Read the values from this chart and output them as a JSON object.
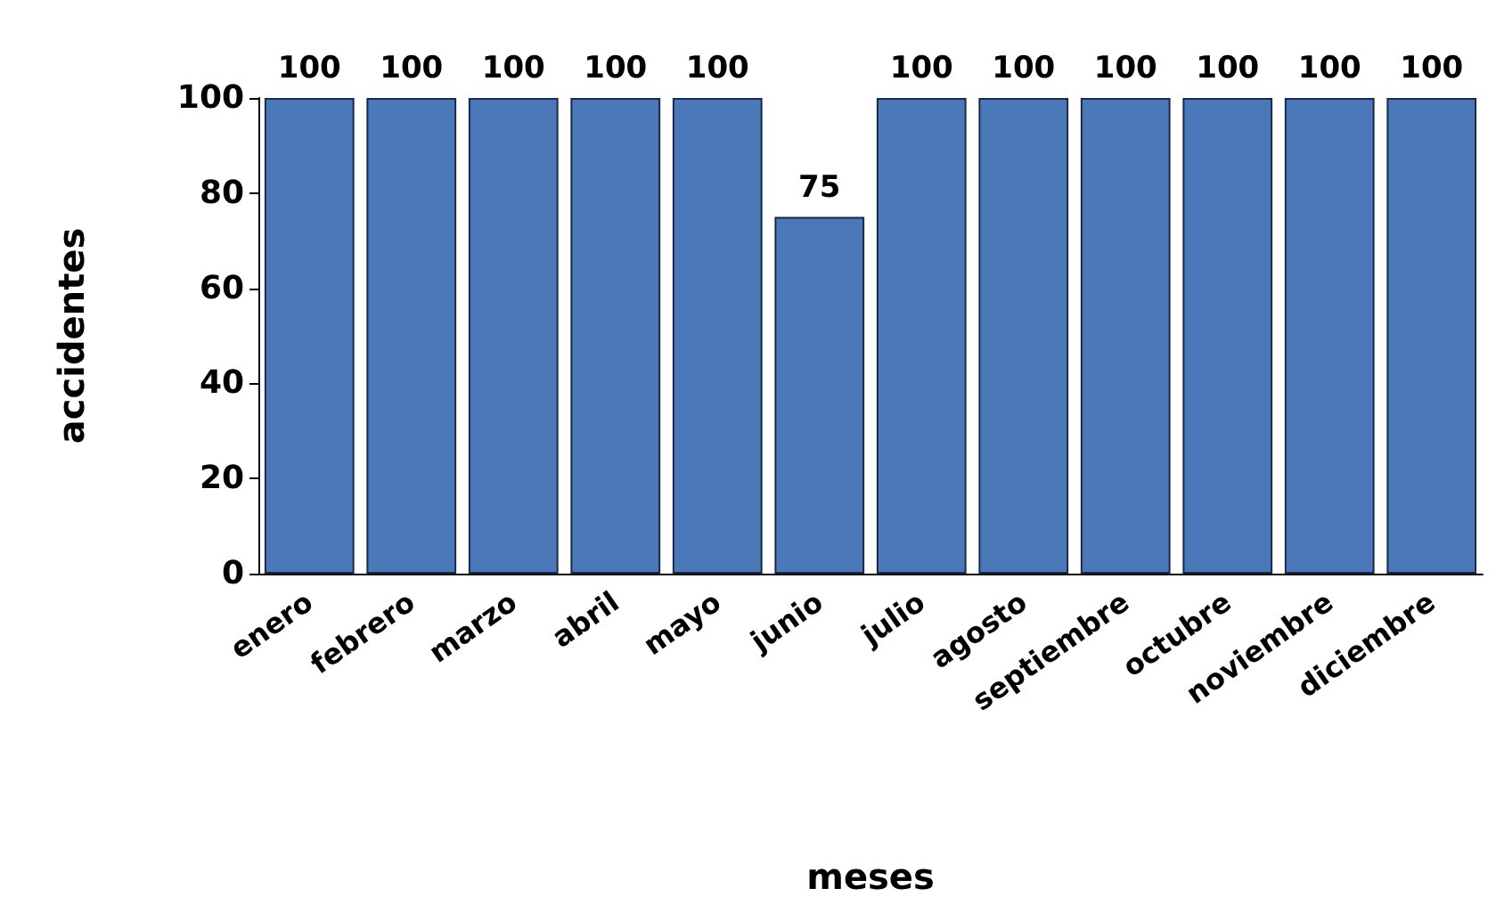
{
  "chart_data": {
    "type": "bar",
    "xlabel": "meses",
    "ylabel": "accidentes",
    "categories": [
      "enero",
      "febrero",
      "marzo",
      "abril",
      "mayo",
      "junio",
      "julio",
      "agosto",
      "septiembre",
      "octubre",
      "noviembre",
      "diciembre"
    ],
    "values": [
      100,
      100,
      100,
      100,
      100,
      75,
      100,
      100,
      100,
      100,
      100,
      100
    ],
    "color": "#4a78b8",
    "ylim": [
      0,
      100
    ],
    "yticks": [
      0,
      20,
      40,
      60,
      80,
      100
    ],
    "grid": false,
    "data_labels": true
  }
}
